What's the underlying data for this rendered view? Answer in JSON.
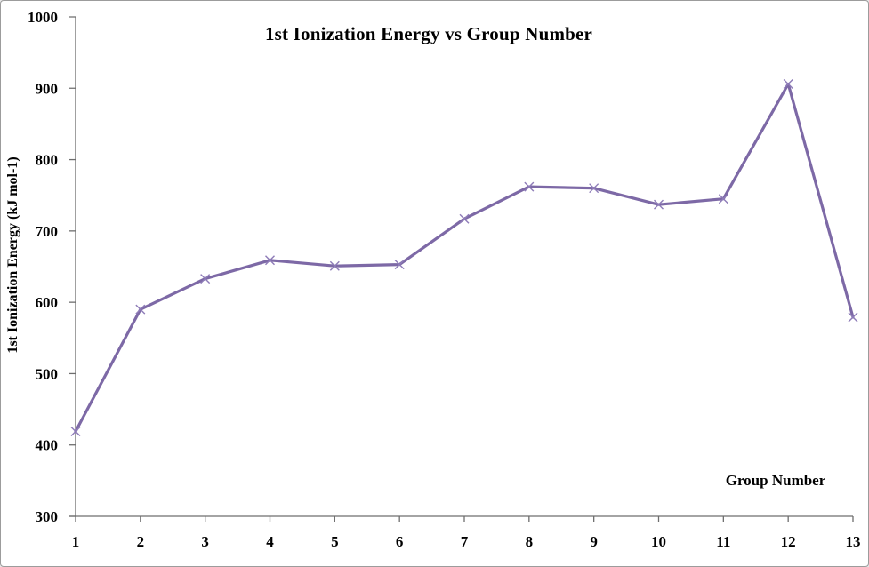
{
  "frame": {
    "background": "#ffffff",
    "border_color": "#9c9c9c"
  },
  "chart_data": {
    "type": "line",
    "title": "1st Ionization Energy vs Group Number",
    "xlabel": "Group Number",
    "ylabel": "1st Ionization Energy (kJ mol-1)",
    "xlim": [
      1,
      13
    ],
    "ylim": [
      300,
      1000
    ],
    "x_ticks": [
      1,
      2,
      3,
      4,
      5,
      6,
      7,
      8,
      9,
      10,
      11,
      12,
      13
    ],
    "y_ticks": [
      300,
      400,
      500,
      600,
      700,
      800,
      900,
      1000
    ],
    "grid": false,
    "legend": false,
    "marker": "x",
    "colors": {
      "line": "#7D69A6",
      "marker": "#8E7CB8",
      "axis": "#6E6E6E",
      "text": "#000000"
    },
    "series": [
      {
        "x": [
          1,
          2,
          3,
          4,
          5,
          6,
          7,
          8,
          9,
          10,
          11,
          12,
          13
        ],
        "values": [
          419,
          590,
          633,
          659,
          651,
          653,
          717,
          762,
          760,
          737,
          745,
          906,
          579
        ]
      }
    ]
  }
}
